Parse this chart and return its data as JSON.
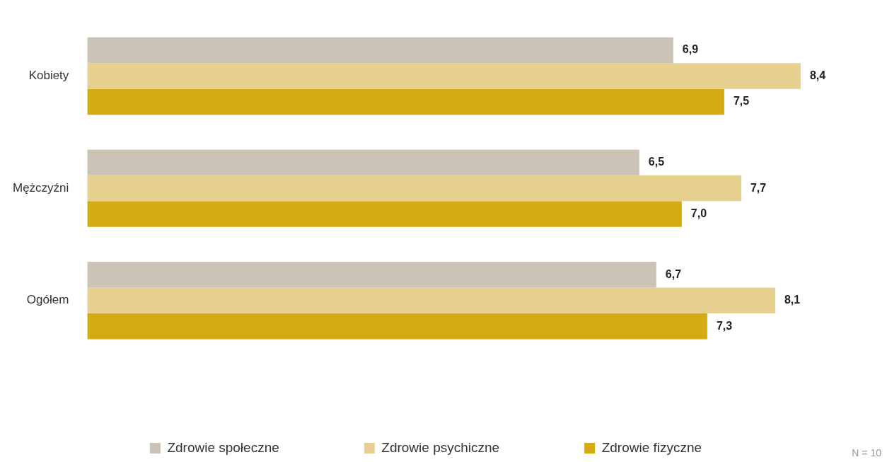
{
  "chart_data": {
    "type": "bar",
    "orientation": "horizontal",
    "categories": [
      "Kobiety",
      "Mężczyźni",
      "Ogółem"
    ],
    "series": [
      {
        "name": "Zdrowie społeczne",
        "color": "#cbc3b5",
        "values": [
          6.9,
          6.5,
          6.7
        ],
        "value_labels": [
          "6,9",
          "6,5",
          "6,7"
        ]
      },
      {
        "name": "Zdrowie psychiczne",
        "color": "#e5d08f",
        "values": [
          8.4,
          7.7,
          8.1
        ],
        "value_labels": [
          "8,4",
          "7,7",
          "8,1"
        ]
      },
      {
        "name": "Zdrowie fizyczne",
        "color": "#d4ab13",
        "values": [
          7.5,
          7.0,
          7.3
        ],
        "value_labels": [
          "7,5",
          "7,0",
          "7,3"
        ]
      }
    ],
    "legend": "bottom",
    "annotations": [
      "N = 10"
    ]
  }
}
